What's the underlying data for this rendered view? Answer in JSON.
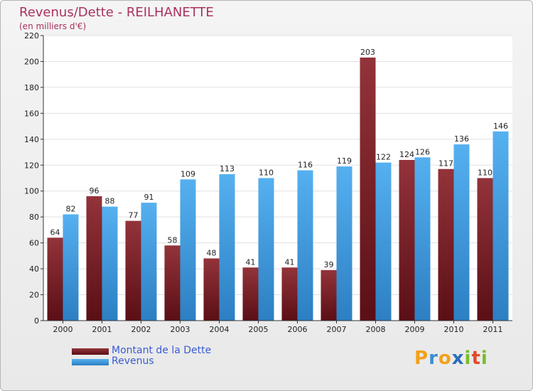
{
  "header": {
    "title": "Revenus/Dette - REILHANETTE",
    "subtitle": "(en milliers d'€)"
  },
  "logo": {
    "letters": [
      "P",
      "r",
      "o",
      "x",
      "i",
      "t",
      "i"
    ],
    "colors": [
      "#f2a11a",
      "#3b8fd0",
      "#f2a11a",
      "#2b6ebc",
      "#7cbb2a",
      "#e04b2b",
      "#7cbb2a"
    ]
  },
  "chart_data": {
    "type": "bar",
    "categories": [
      "2000",
      "2001",
      "2002",
      "2003",
      "2004",
      "2005",
      "2006",
      "2007",
      "2008",
      "2009",
      "2010",
      "2011"
    ],
    "series": [
      {
        "name": "Montant de la Dette",
        "color": "#7a1f25",
        "values": [
          64,
          96,
          77,
          58,
          48,
          41,
          41,
          39,
          203,
          124,
          117,
          110
        ]
      },
      {
        "name": "Revenus",
        "color": "#3f9fe6",
        "values": [
          82,
          88,
          91,
          109,
          113,
          110,
          116,
          119,
          122,
          126,
          136,
          146
        ]
      }
    ],
    "ylim": [
      0,
      220
    ],
    "yticks": [
      0,
      20,
      40,
      60,
      80,
      100,
      120,
      140,
      160,
      180,
      200,
      220
    ],
    "grid": true,
    "legend_position": "bottom-left"
  }
}
